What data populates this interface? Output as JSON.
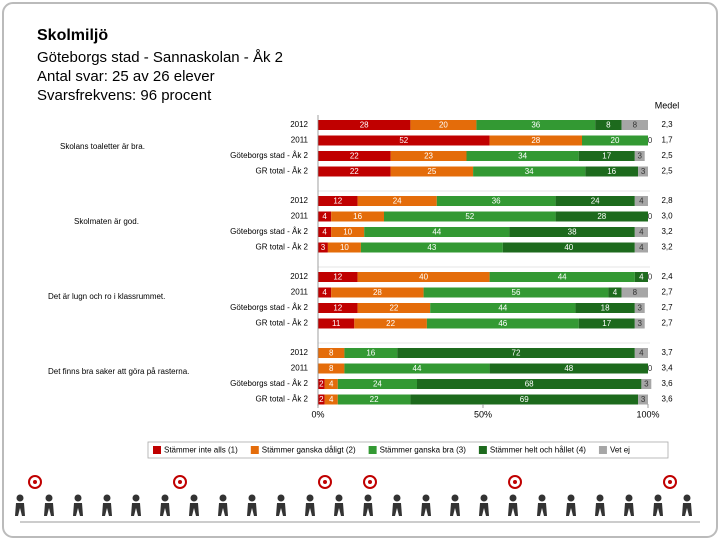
{
  "chart_data": {
    "type": "stacked-barh",
    "title": "Skolmiljö",
    "subtitles": [
      "Göteborgs stad - Sannaskolan - Åk 2",
      "Antal svar: 25 av 26 elever",
      "Svarsfrekvens: 96 procent"
    ],
    "questions": [
      "Skolans toaletter är bra.",
      "Skolmaten är god.",
      "Det är lugn och ro i klassrummet.",
      "Det finns bra saker att göra på rasterna."
    ],
    "categories": [
      "2012",
      "2011",
      "Göteborgs stad - Åk 2",
      "GR total - Åk 2",
      "2012",
      "2011",
      "Göteborgs stad - Åk 2",
      "GR total - Åk 2",
      "2012",
      "2011",
      "Göteborgs stad - Åk 2",
      "GR total - Åk 2",
      "2012",
      "2011",
      "Göteborgs stad - Åk 2",
      "GR total - Åk 2"
    ],
    "series": [
      {
        "name": "Stämmer inte alls (1)",
        "color": "#c00000",
        "values": [
          28,
          52,
          22,
          22,
          12,
          4,
          4,
          3,
          12,
          4,
          12,
          11,
          null,
          null,
          2,
          2
        ]
      },
      {
        "name": "Stämmer ganska dåligt (2)",
        "color": "#e46c0a",
        "values": [
          20,
          28,
          23,
          25,
          24,
          16,
          10,
          10,
          40,
          28,
          22,
          22,
          8,
          8,
          4,
          4
        ]
      },
      {
        "name": "Stämmer ganska bra (3)",
        "color": "#339933",
        "values": [
          36,
          20,
          34,
          34,
          36,
          52,
          44,
          43,
          44,
          56,
          44,
          46,
          16,
          44,
          24,
          22
        ]
      },
      {
        "name": "Stämmer helt och hållet (4)",
        "color": "#1d6a1d",
        "values": [
          8,
          null,
          17,
          16,
          24,
          28,
          38,
          40,
          4,
          4,
          18,
          17,
          72,
          48,
          68,
          69
        ]
      },
      {
        "name": "Vet ej",
        "color": "#a6a6a6",
        "values": [
          8,
          0,
          3,
          3,
          4,
          0,
          4,
          4,
          0,
          8,
          3,
          3,
          4,
          0,
          3,
          3
        ]
      }
    ],
    "mean": {
      "title": "Medel",
      "values": [
        2.3,
        1.7,
        2.5,
        2.5,
        2.8,
        3.0,
        3.2,
        3.2,
        2.4,
        2.7,
        2.7,
        2.7,
        3.7,
        3.4,
        3.6,
        3.6
      ],
      "value_labels": [
        "2,3",
        "1,7",
        "2,5",
        "2,5",
        "2,8",
        "3,0",
        "3,2",
        "3,2",
        "2,4",
        "2,7",
        "2,7",
        "2,7",
        "3,7",
        "3,4",
        "3,6",
        "3,6"
      ]
    },
    "xlim": [
      0,
      100
    ],
    "xticks": [
      {
        "value": 0,
        "label": "0%"
      },
      {
        "value": 50,
        "label": "50%"
      },
      {
        "value": 100,
        "label": "100%"
      }
    ]
  }
}
